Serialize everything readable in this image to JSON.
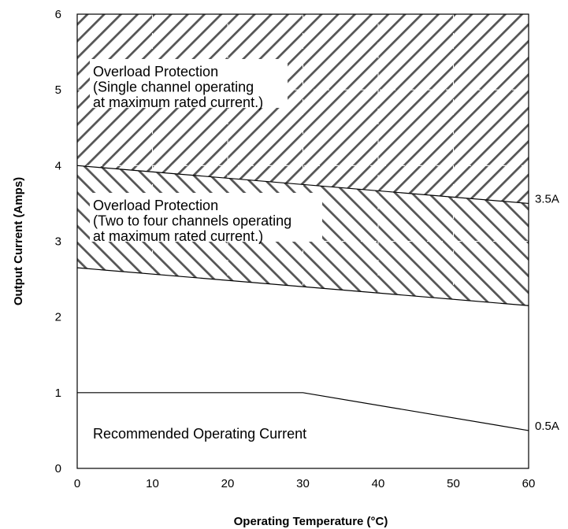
{
  "chart_data": {
    "type": "area",
    "xlabel": "Operating Temperature (°C)",
    "ylabel": "Output Current (Amps)",
    "xlim": [
      0,
      60
    ],
    "ylim": [
      0,
      6
    ],
    "xticks": [
      "0",
      "10",
      "20",
      "30",
      "40",
      "50",
      "60"
    ],
    "yticks": [
      "0",
      "1",
      "2",
      "3",
      "4",
      "5",
      "6"
    ],
    "grid": true,
    "series": [
      {
        "name": "Recommended Operating Current",
        "x": [
          0,
          30,
          60
        ],
        "y": [
          1.0,
          1.0,
          0.5
        ]
      },
      {
        "x": [
          0,
          60
        ],
        "y": [
          2.65,
          2.15
        ]
      },
      {
        "x": [
          0,
          60
        ],
        "y": [
          4.0,
          3.5
        ]
      }
    ],
    "regions": [
      {
        "label_lines": [
          "Overload Protection",
          "(Single channel operating",
          "at maximum rated current.)"
        ],
        "between": [
          "upper",
          "top"
        ],
        "hatch": "forward-diagonal"
      },
      {
        "label_lines": [
          "Overload Protection",
          "(Two to four channels operating",
          "at maximum rated current.)"
        ],
        "between": [
          "lower",
          "upper"
        ],
        "hatch": "back-diagonal"
      },
      {
        "label_lines": [
          "Recommended Operating Current"
        ],
        "between": [
          "bottom",
          "recommended"
        ],
        "hatch": "none"
      }
    ],
    "end_labels": [
      {
        "text": "3.5A",
        "y": 3.5
      },
      {
        "text": "0.5A",
        "y": 0.5
      }
    ]
  }
}
